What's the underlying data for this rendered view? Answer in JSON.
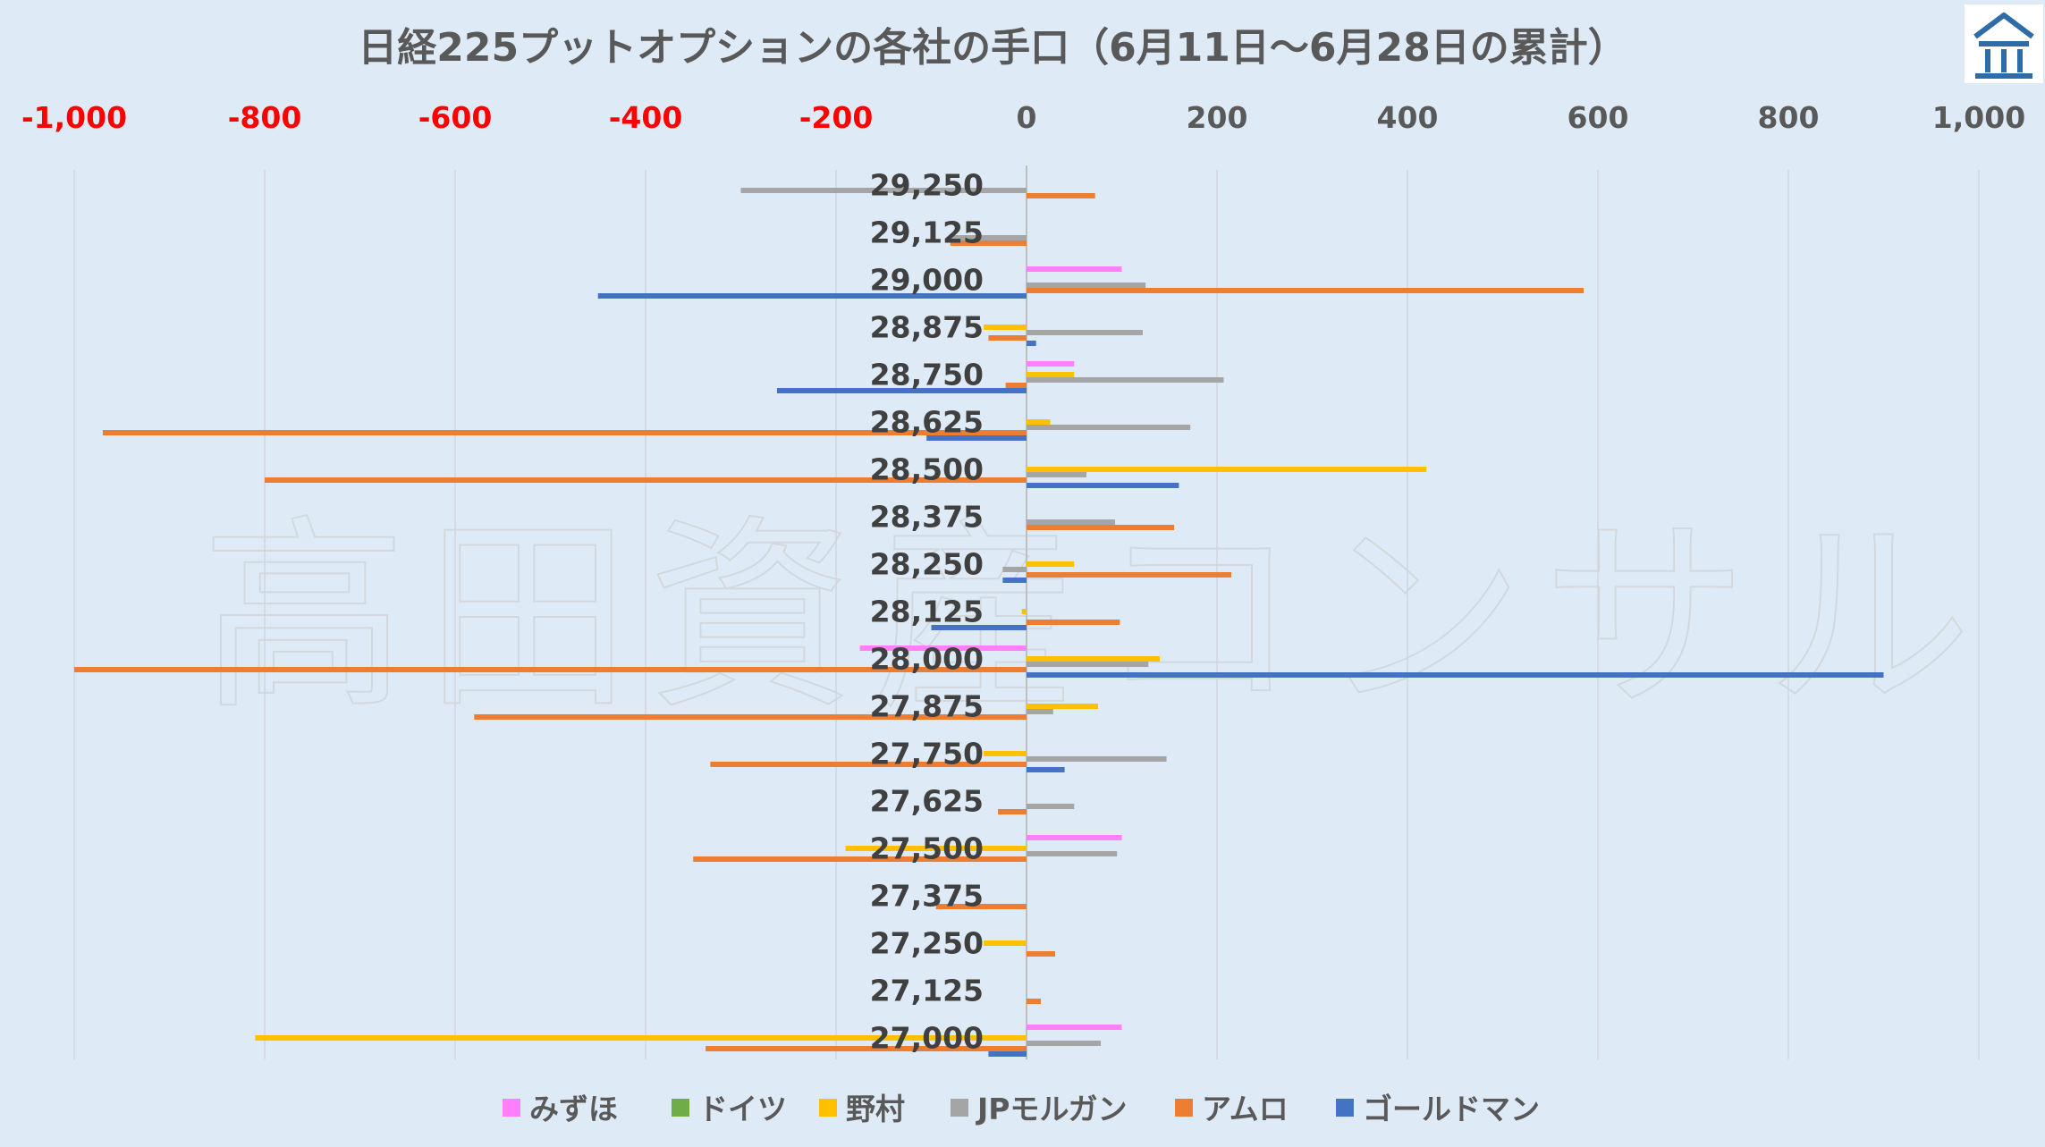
{
  "page": {
    "background": "#deebf7"
  },
  "watermark": {
    "text": "高田資産コンサル"
  },
  "logo": {
    "icon": "building-columns-logo-icon",
    "color": "#2e6ca8"
  },
  "chart_data": {
    "type": "bar",
    "orientation": "horizontal",
    "title": "日経225プットオプションの各社の手口（6月11日～6月28日の累計）",
    "xlim": [
      -1000,
      1000
    ],
    "xticks": [
      -1000,
      -800,
      -600,
      -400,
      -200,
      0,
      200,
      400,
      600,
      800,
      1000
    ],
    "xtick_labels": [
      "-1,000",
      "-800",
      "-600",
      "-400",
      "-200",
      "0",
      "200",
      "400",
      "600",
      "800",
      "1,000"
    ],
    "negative_tick_color": "#ff0000",
    "positive_tick_color": "#595959",
    "axis_position": "top",
    "grid": true,
    "legend_position": "bottom",
    "categories": [
      "29,250",
      "29,125",
      "29,000",
      "28,875",
      "28,750",
      "28,625",
      "28,500",
      "28,375",
      "28,250",
      "28,125",
      "28,000",
      "27,875",
      "27,750",
      "27,625",
      "27,500",
      "27,375",
      "27,250",
      "27,125",
      "27,000"
    ],
    "series": [
      {
        "name": "みずほ",
        "color": "#ff80ff",
        "values": [
          0,
          0,
          100,
          0,
          50,
          0,
          0,
          0,
          0,
          0,
          -175,
          0,
          0,
          0,
          100,
          0,
          0,
          0,
          100
        ]
      },
      {
        "name": "ドイツ",
        "color": "#70ad47",
        "values": [
          0,
          0,
          0,
          0,
          0,
          0,
          0,
          0,
          0,
          0,
          0,
          0,
          0,
          0,
          0,
          0,
          0,
          0,
          0
        ]
      },
      {
        "name": "野村",
        "color": "#ffc000",
        "values": [
          0,
          0,
          0,
          -45,
          50,
          25,
          420,
          0,
          50,
          -5,
          140,
          75,
          -45,
          0,
          -190,
          0,
          -45,
          0,
          -810
        ]
      },
      {
        "name": "JPモルガン",
        "color": "#a5a5a5",
        "values": [
          -300,
          -80,
          125,
          122,
          207,
          172,
          63,
          93,
          -25,
          0,
          128,
          28,
          147,
          50,
          95,
          0,
          0,
          0,
          78
        ]
      },
      {
        "name": "アムロ",
        "color": "#ed7d31",
        "values": [
          72,
          -80,
          585,
          -40,
          -22,
          -970,
          -800,
          155,
          215,
          98,
          -1000,
          -580,
          -332,
          -30,
          -350,
          -95,
          30,
          15,
          -337
        ]
      },
      {
        "name": "ゴールドマン",
        "color": "#4472c4",
        "values": [
          0,
          0,
          -450,
          10,
          -262,
          -105,
          160,
          0,
          -25,
          -100,
          900,
          0,
          40,
          0,
          0,
          0,
          0,
          0,
          -40
        ]
      }
    ]
  }
}
